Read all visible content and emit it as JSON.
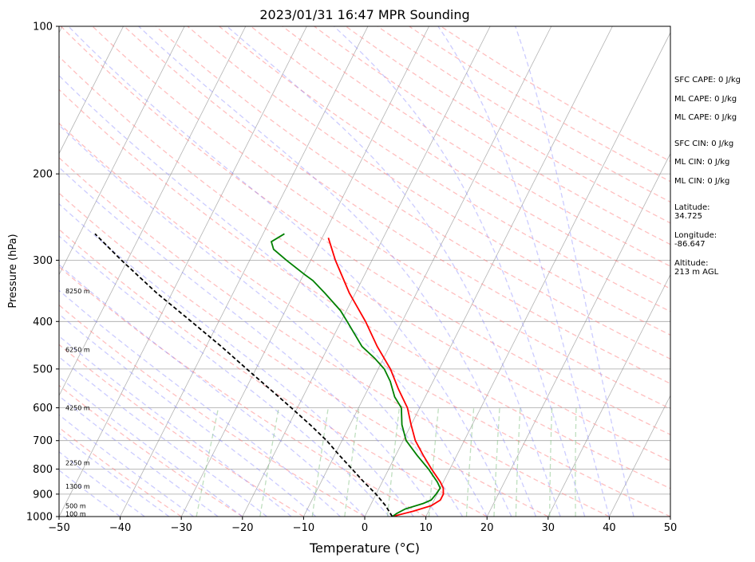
{
  "chart_data": {
    "type": "line",
    "diagram": "skew-T log-P",
    "title": "2023/01/31 16:47 MPR Sounding",
    "xlabel": "Temperature (°C)",
    "ylabel": "Pressure (hPa)",
    "xlim": [
      -50,
      50
    ],
    "ylim": [
      1000,
      100
    ],
    "y_scale": "log",
    "grid": true,
    "x_ticks": [
      "−50",
      "−40",
      "−30",
      "−20",
      "−10",
      "0",
      "10",
      "20",
      "30",
      "40",
      "50"
    ],
    "x_tick_values": [
      -50,
      -40,
      -30,
      -20,
      -10,
      0,
      10,
      20,
      30,
      40,
      50
    ],
    "y_ticks": [
      "100",
      "200",
      "300",
      "400",
      "500",
      "600",
      "700",
      "800",
      "900",
      "1000"
    ],
    "y_tick_values": [
      100,
      200,
      300,
      400,
      500,
      600,
      700,
      800,
      900,
      1000
    ],
    "series": [
      {
        "kind": "temperature",
        "color": "#ff0000",
        "style": "solid",
        "points": [
          [
            1000,
            4.5
          ],
          [
            975,
            7.5
          ],
          [
            950,
            10.0
          ],
          [
            925,
            11.0
          ],
          [
            900,
            11.0
          ],
          [
            875,
            10.5
          ],
          [
            850,
            9.5
          ],
          [
            800,
            7.0
          ],
          [
            750,
            4.5
          ],
          [
            700,
            2.0
          ],
          [
            650,
            0.0
          ],
          [
            600,
            -2.0
          ],
          [
            550,
            -5.0
          ],
          [
            500,
            -8.0
          ],
          [
            450,
            -12.0
          ],
          [
            400,
            -16.0
          ],
          [
            350,
            -21.0
          ],
          [
            300,
            -26.0
          ],
          [
            270,
            -29.0
          ]
        ]
      },
      {
        "kind": "dewpoint",
        "color": "#008000",
        "style": "solid",
        "points": [
          [
            1000,
            4.5
          ],
          [
            985,
            5.0
          ],
          [
            965,
            6.0
          ],
          [
            940,
            8.5
          ],
          [
            925,
            9.5
          ],
          [
            900,
            9.8
          ],
          [
            875,
            10.0
          ],
          [
            850,
            9.0
          ],
          [
            800,
            6.5
          ],
          [
            750,
            3.5
          ],
          [
            700,
            0.5
          ],
          [
            650,
            -1.5
          ],
          [
            600,
            -3.0
          ],
          [
            570,
            -5.0
          ],
          [
            530,
            -7.0
          ],
          [
            500,
            -9.0
          ],
          [
            475,
            -11.5
          ],
          [
            450,
            -14.5
          ],
          [
            400,
            -19.0
          ],
          [
            380,
            -21.0
          ],
          [
            350,
            -25.0
          ],
          [
            330,
            -28.0
          ],
          [
            320,
            -30.0
          ],
          [
            300,
            -34.0
          ],
          [
            285,
            -37.0
          ],
          [
            275,
            -38.0
          ],
          [
            265,
            -36.5
          ]
        ]
      },
      {
        "kind": "parcel",
        "color": "#000000",
        "style": "dashed",
        "points": [
          [
            1000,
            4.5
          ],
          [
            950,
            2.5
          ],
          [
            900,
            0.0
          ],
          [
            850,
            -3.0
          ],
          [
            800,
            -6.0
          ],
          [
            750,
            -9.2
          ],
          [
            700,
            -12.5
          ],
          [
            650,
            -16.5
          ],
          [
            600,
            -21.0
          ],
          [
            550,
            -26.0
          ],
          [
            500,
            -31.5
          ],
          [
            450,
            -37.5
          ],
          [
            400,
            -44.5
          ],
          [
            350,
            -52.5
          ],
          [
            300,
            -61.0
          ],
          [
            265,
            -67.5
          ]
        ]
      }
    ],
    "height_labels": [
      {
        "p": 990,
        "text": "100 m"
      },
      {
        "p": 955,
        "text": "500 m"
      },
      {
        "p": 870,
        "text": "1300 m"
      },
      {
        "p": 780,
        "text": "2250 m"
      },
      {
        "p": 602,
        "text": "4250 m"
      },
      {
        "p": 458,
        "text": "6250 m"
      },
      {
        "p": 348,
        "text": "8250 m"
      }
    ]
  },
  "indices": [
    {
      "text": "SFC CAPE: 0 J/kg"
    },
    {
      "text": "ML CAPE: 0 J/kg"
    },
    {
      "text": "ML CAPE: 0 J/kg"
    },
    {
      "text": "SFC CIN: 0 J/kg"
    },
    {
      "text": "ML CIN: 0 J/kg"
    },
    {
      "text": "ML CIN: 0 J/kg"
    }
  ],
  "location": {
    "latitude": "Latitude:\n34.725",
    "longitude": "Longitude:\n-86.647",
    "altitude": "Altitude:\n213 m AGL"
  },
  "colors": {
    "isotherm": "#808080",
    "dry_adiabat": "#ff7f7f",
    "moist_adiabat": "#7f7fff",
    "mixing_ratio": "#7fbf7f"
  }
}
